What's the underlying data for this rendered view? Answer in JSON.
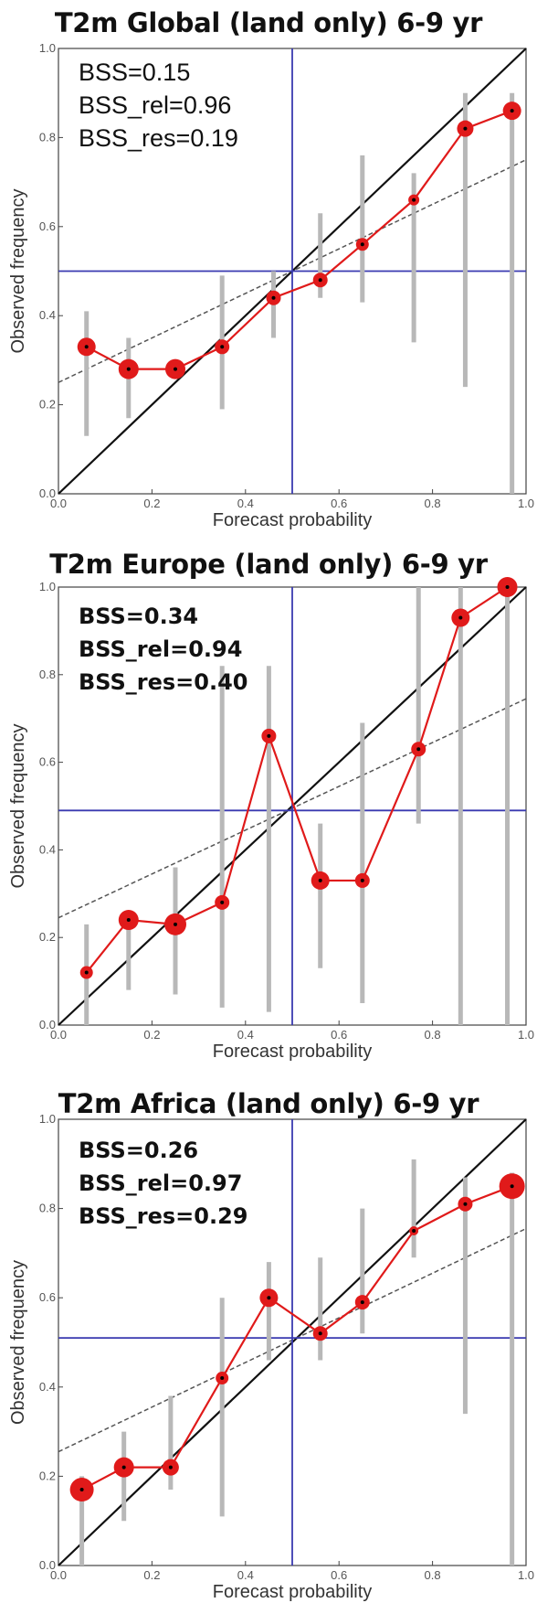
{
  "colors": {
    "diagonal": "#111111",
    "climatology": "#3a3ab0",
    "skill_line": "#555555",
    "error_bars": "#b8b8b8",
    "reliability": "#e01a1a"
  },
  "panels": [
    {
      "title": "T2m Global (land only) 6-9 yr",
      "stats": [
        "BSS=0.15",
        "BSS_rel=0.96",
        "BSS_res=0.19"
      ],
      "xlabel": "Forecast probability",
      "ylabel": "Observed frequency",
      "xticks": [
        "0.0",
        "0.2",
        "0.4",
        "0.6",
        "0.8",
        "1.0"
      ],
      "yticks": [
        "0.0",
        "0.2",
        "0.4",
        "0.6",
        "0.8",
        "1.0"
      ]
    },
    {
      "title": "T2m Europe (land only) 6-9 yr",
      "stats": [
        "BSS=0.34",
        "BSS_rel=0.94",
        "BSS_res=0.40"
      ],
      "xlabel": "Forecast probability",
      "ylabel": "Observed frequency",
      "xticks": [
        "0.0",
        "0.2",
        "0.4",
        "0.6",
        "0.8",
        "1.0"
      ],
      "yticks": [
        "0.0",
        "0.2",
        "0.4",
        "0.6",
        "0.8",
        "1.0"
      ]
    },
    {
      "title": "T2m Africa (land only) 6-9 yr",
      "stats": [
        "BSS=0.26",
        "BSS_rel=0.97",
        "BSS_res=0.29"
      ],
      "xlabel": "Forecast probability",
      "ylabel": "Observed frequency",
      "xticks": [
        "0.0",
        "0.2",
        "0.4",
        "0.6",
        "0.8",
        "1.0"
      ],
      "yticks": [
        "0.0",
        "0.2",
        "0.4",
        "0.6",
        "0.8",
        "1.0"
      ]
    }
  ],
  "chart_data": [
    {
      "type": "line",
      "title": "T2m Global (land only) 6-9 yr",
      "xlabel": "Forecast probability",
      "ylabel": "Observed frequency",
      "xlim": [
        0,
        1
      ],
      "ylim": [
        0,
        1
      ],
      "climatology": 0.5,
      "skill_line": [
        [
          0,
          0.25
        ],
        [
          1,
          0.75
        ]
      ],
      "series": [
        {
          "x": [
            0.06,
            0.15,
            0.25,
            0.35,
            0.46,
            0.56,
            0.65,
            0.76,
            0.87,
            0.97
          ],
          "y": [
            0.33,
            0.28,
            0.28,
            0.33,
            0.44,
            0.48,
            0.56,
            0.66,
            0.82,
            0.86
          ],
          "sample_size": [
            10,
            11,
            11,
            8,
            8,
            8,
            7,
            6,
            9,
            10
          ],
          "err_low": [
            0.13,
            0.17,
            0.0,
            0.19,
            0.35,
            0.44,
            0.43,
            0.34,
            0.24,
            0.0
          ],
          "err_high": [
            0.41,
            0.35,
            0.0,
            0.49,
            0.5,
            0.63,
            0.76,
            0.72,
            0.9,
            0.9
          ]
        }
      ]
    },
    {
      "type": "line",
      "title": "T2m Europe (land only) 6-9 yr",
      "xlabel": "Forecast probability",
      "ylabel": "Observed frequency",
      "xlim": [
        0,
        1
      ],
      "ylim": [
        0,
        1
      ],
      "climatology": 0.49,
      "skill_line": [
        [
          0,
          0.245
        ],
        [
          1,
          0.745
        ]
      ],
      "series": [
        {
          "x": [
            0.06,
            0.15,
            0.25,
            0.35,
            0.45,
            0.56,
            0.65,
            0.77,
            0.86,
            0.96
          ],
          "y": [
            0.12,
            0.24,
            0.23,
            0.28,
            0.66,
            0.33,
            0.33,
            0.63,
            0.93,
            1.0
          ],
          "sample_size": [
            7,
            11,
            12,
            8,
            8,
            10,
            8,
            8,
            10,
            11
          ],
          "err_low": [
            0.0,
            0.08,
            0.07,
            0.04,
            0.03,
            0.13,
            0.05,
            0.46,
            0.0,
            0.0
          ],
          "err_high": [
            0.23,
            0.26,
            0.36,
            0.82,
            0.82,
            0.46,
            0.69,
            1.0,
            1.0,
            1.0
          ]
        }
      ]
    },
    {
      "type": "line",
      "title": "T2m Africa (land only) 6-9 yr",
      "xlabel": "Forecast probability",
      "ylabel": "Observed frequency",
      "xlim": [
        0,
        1
      ],
      "ylim": [
        0,
        1
      ],
      "climatology": 0.51,
      "skill_line": [
        [
          0,
          0.255
        ],
        [
          1,
          0.755
        ]
      ],
      "series": [
        {
          "x": [
            0.05,
            0.14,
            0.24,
            0.35,
            0.45,
            0.56,
            0.65,
            0.76,
            0.87,
            0.97
          ],
          "y": [
            0.17,
            0.22,
            0.22,
            0.42,
            0.6,
            0.52,
            0.59,
            0.75,
            0.81,
            0.85
          ],
          "sample_size": [
            13,
            11,
            9,
            7,
            10,
            8,
            8,
            5,
            8,
            14
          ],
          "err_low": [
            0.0,
            0.1,
            0.17,
            0.11,
            0.46,
            0.46,
            0.52,
            0.69,
            0.34,
            0.0
          ],
          "err_high": [
            0.2,
            0.3,
            0.38,
            0.6,
            0.68,
            0.69,
            0.8,
            0.91,
            0.87,
            0.88
          ]
        }
      ]
    }
  ]
}
